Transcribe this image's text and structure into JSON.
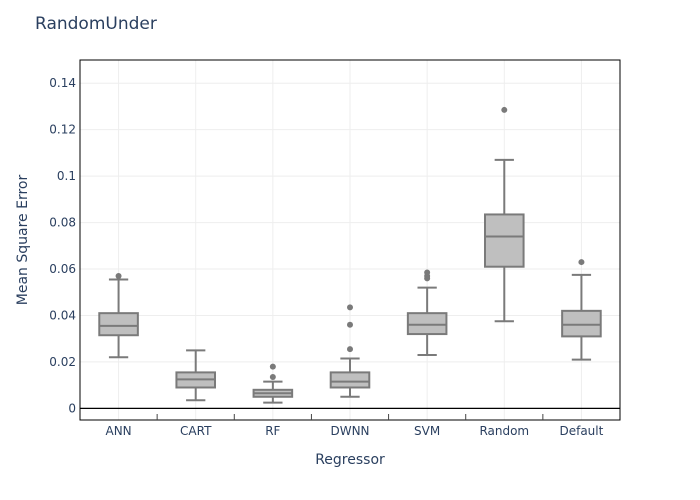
{
  "chart_data": {
    "type": "box",
    "title": "RandomUnder",
    "xlabel": "Regressor",
    "ylabel": "Mean Square Error",
    "ylim": [
      -0.005,
      0.15
    ],
    "yticks": [
      0,
      0.02,
      0.04,
      0.06,
      0.08,
      0.1,
      0.12,
      0.14
    ],
    "ytick_labels": [
      "0",
      "0.02",
      "0.04",
      "0.06",
      "0.08",
      "0.1",
      "0.12",
      "0.14"
    ],
    "grid": true,
    "categories": [
      "ANN",
      "CART",
      "RF",
      "DWNN",
      "SVM",
      "Random",
      "Default"
    ],
    "box_color": "#bfbfbf",
    "line_color": "#7a7a7a",
    "boxes": [
      {
        "name": "ANN",
        "lower_whisker": 0.022,
        "q1": 0.0315,
        "median": 0.0355,
        "q3": 0.041,
        "upper_whisker": 0.0555,
        "outliers": [
          0.057
        ]
      },
      {
        "name": "CART",
        "lower_whisker": 0.0035,
        "q1": 0.009,
        "median": 0.0125,
        "q3": 0.0155,
        "upper_whisker": 0.025,
        "outliers": []
      },
      {
        "name": "RF",
        "lower_whisker": 0.0025,
        "q1": 0.005,
        "median": 0.0065,
        "q3": 0.008,
        "upper_whisker": 0.0115,
        "outliers": [
          0.0135,
          0.018
        ]
      },
      {
        "name": "DWNN",
        "lower_whisker": 0.005,
        "q1": 0.009,
        "median": 0.0115,
        "q3": 0.0155,
        "upper_whisker": 0.0215,
        "outliers": [
          0.0255,
          0.036,
          0.0435
        ]
      },
      {
        "name": "SVM",
        "lower_whisker": 0.023,
        "q1": 0.032,
        "median": 0.036,
        "q3": 0.041,
        "upper_whisker": 0.052,
        "outliers": [
          0.056,
          0.057,
          0.0585
        ]
      },
      {
        "name": "Random",
        "lower_whisker": 0.0375,
        "q1": 0.061,
        "median": 0.074,
        "q3": 0.0835,
        "upper_whisker": 0.107,
        "outliers": [
          0.1285
        ]
      },
      {
        "name": "Default",
        "lower_whisker": 0.021,
        "q1": 0.031,
        "median": 0.036,
        "q3": 0.042,
        "upper_whisker": 0.0575,
        "outliers": [
          0.063
        ]
      }
    ]
  }
}
